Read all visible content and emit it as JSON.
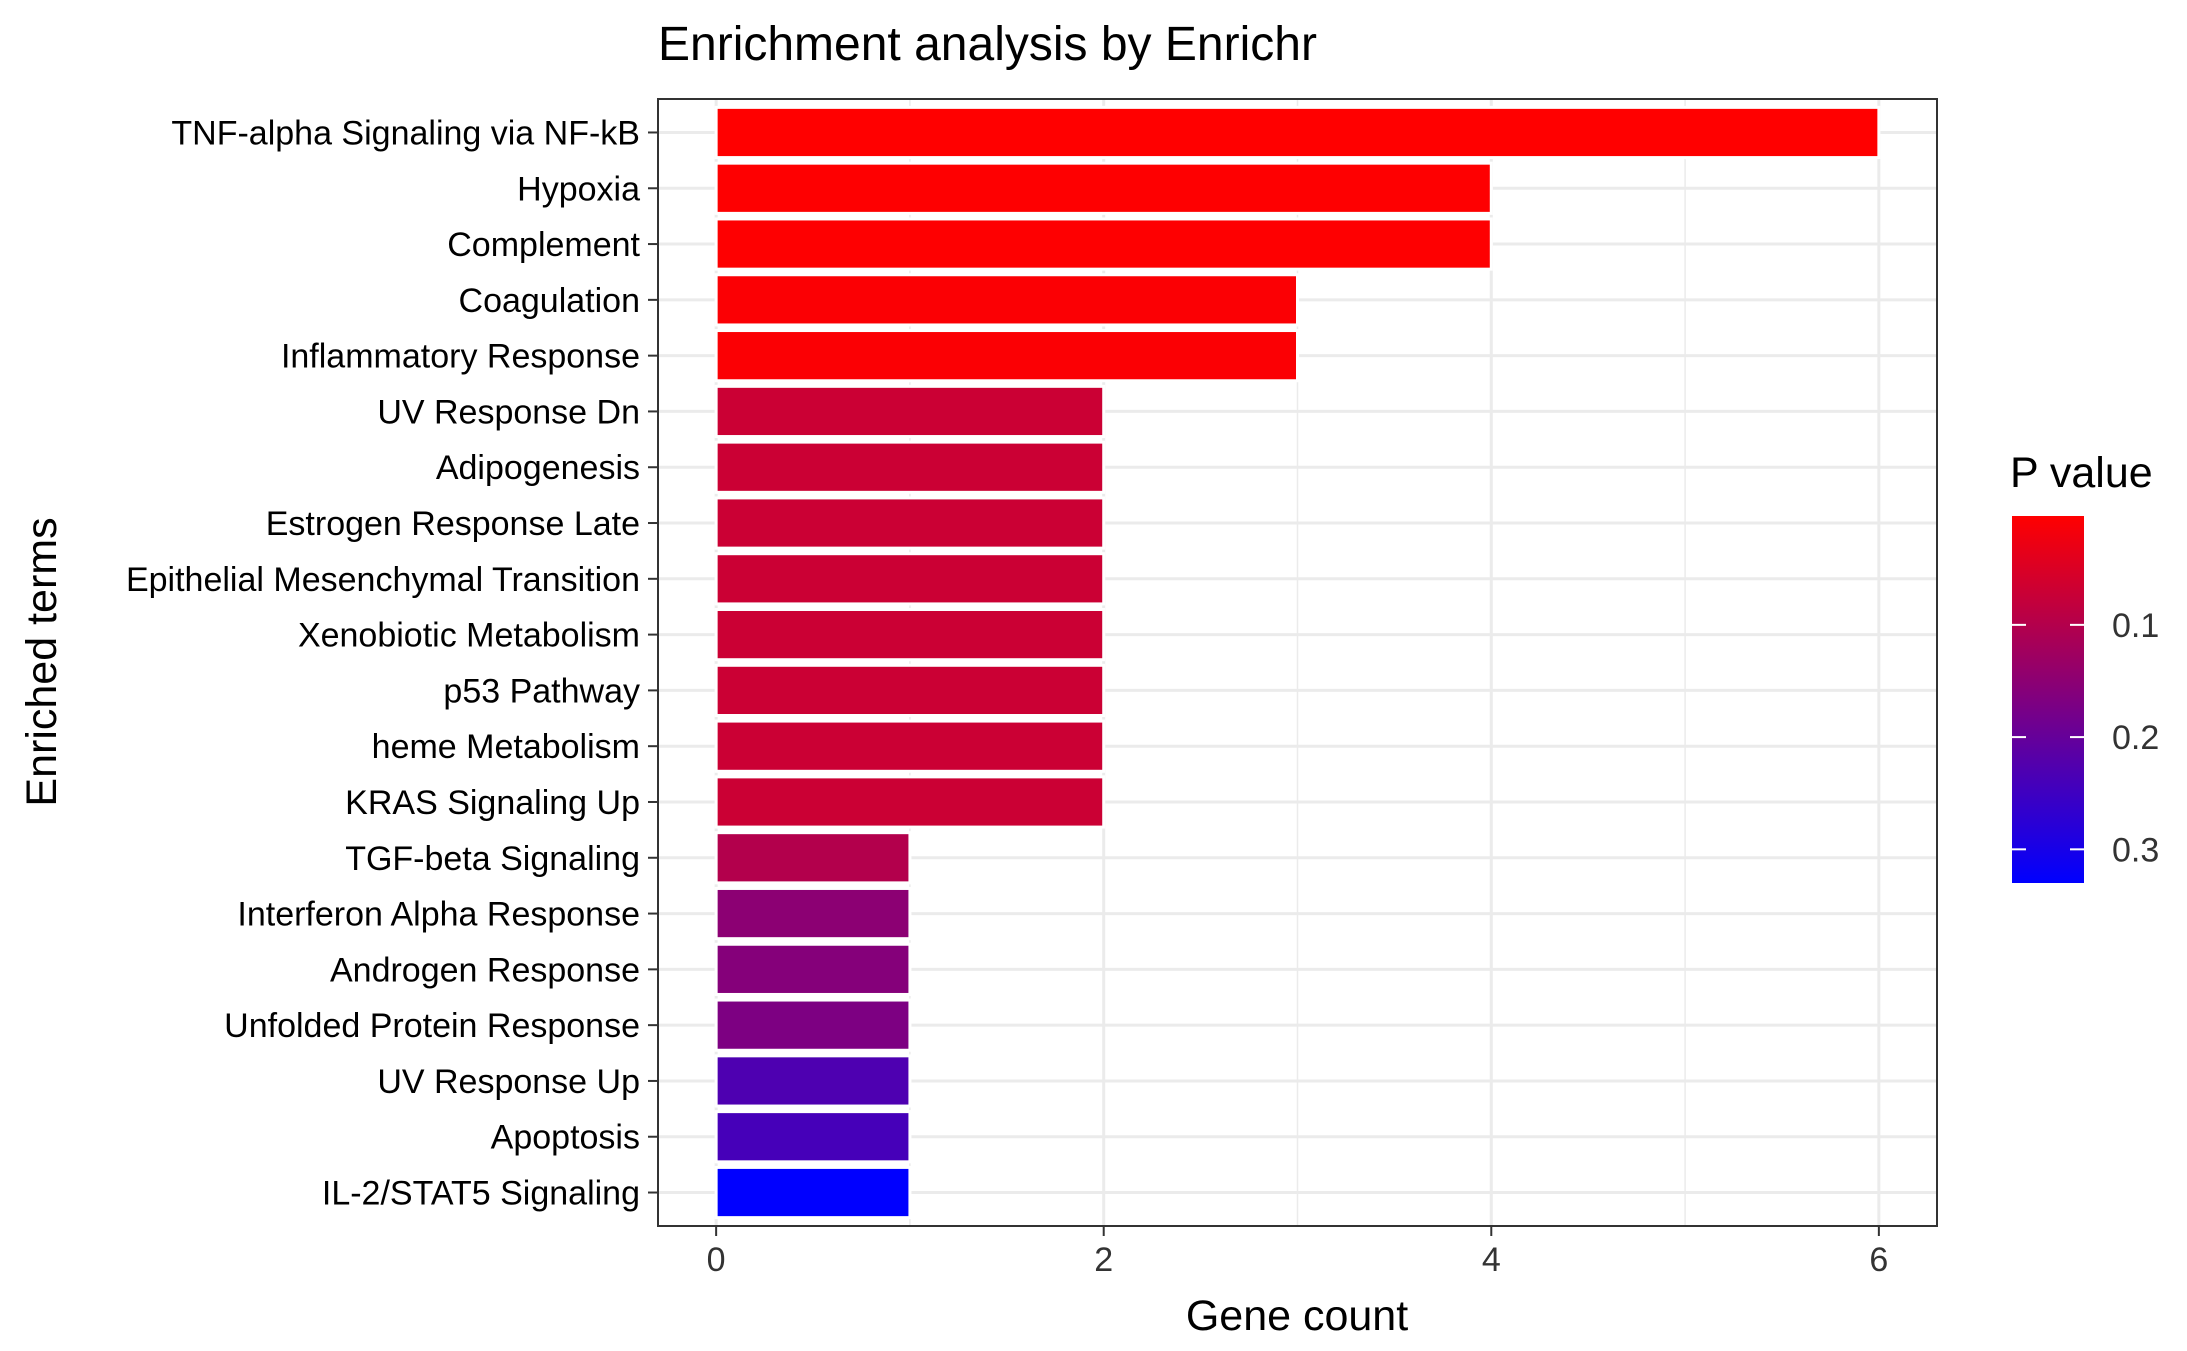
{
  "chart_data": {
    "type": "bar",
    "orientation": "horizontal",
    "title": "Enrichment analysis by Enrichr",
    "xlabel": "Gene count",
    "ylabel": "Enriched terms",
    "xlim": [
      -0.3,
      6.3
    ],
    "xticks": [
      0,
      2,
      4,
      6
    ],
    "grid": true,
    "categories": [
      "TNF-alpha Signaling via NF-kB",
      "Hypoxia",
      "Complement",
      "Coagulation",
      "Inflammatory Response",
      "UV Response Dn",
      "Adipogenesis",
      "Estrogen Response Late",
      "Epithelial Mesenchymal Transition",
      "Xenobiotic Metabolism",
      "p53 Pathway",
      "heme Metabolism",
      "KRAS Signaling Up",
      "TGF-beta Signaling",
      "Interferon Alpha Response",
      "Androgen Response",
      "Unfolded Protein Response",
      "UV Response Up",
      "Apoptosis",
      "IL-2/STAT5 Signaling"
    ],
    "values": [
      6,
      4,
      4,
      3,
      3,
      2,
      2,
      2,
      2,
      2,
      2,
      2,
      2,
      1,
      1,
      1,
      1,
      1,
      1,
      1
    ],
    "p_values": [
      0.003,
      0.004,
      0.004,
      0.008,
      0.008,
      0.07,
      0.07,
      0.07,
      0.07,
      0.07,
      0.07,
      0.07,
      0.07,
      0.1,
      0.15,
      0.16,
      0.17,
      0.23,
      0.24,
      0.33
    ],
    "legend": {
      "title": "P value",
      "position": "right",
      "ticks": [
        0.1,
        0.2,
        0.3
      ],
      "range": [
        0.003,
        0.33
      ],
      "low_color": "#ff0000",
      "high_color": "#0000ff"
    },
    "colors": {
      "bar_outline": "#ffffff",
      "grid": "#ebebeb",
      "panel_border": "#333333",
      "text": "#000000",
      "tick_text": "#333333"
    }
  }
}
